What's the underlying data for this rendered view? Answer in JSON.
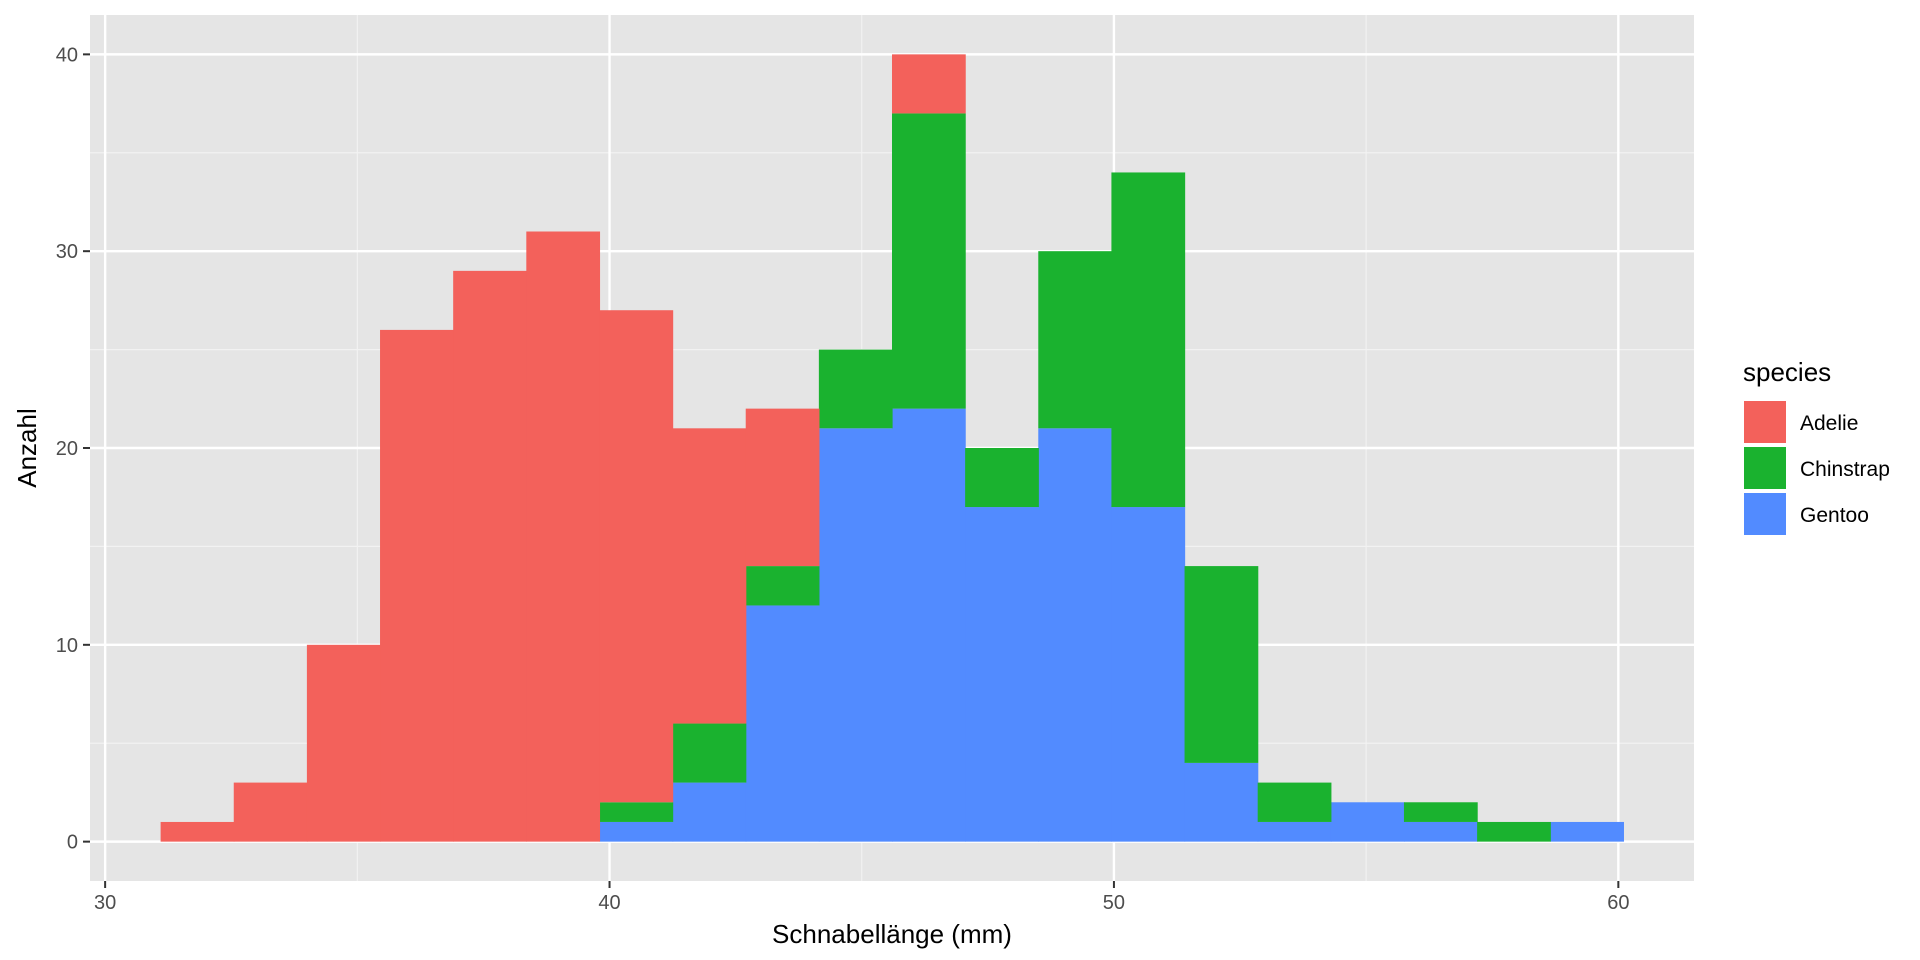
{
  "chart_data": {
    "type": "bar",
    "subtype": "stacked-histogram",
    "xlabel": "Schnabellänge (mm)",
    "ylabel": "Anzahl",
    "xlim": [
      29.7,
      61.5
    ],
    "ylim": [
      -2,
      42
    ],
    "xticks": [
      30,
      40,
      50,
      60
    ],
    "yticks": [
      0,
      10,
      20,
      30,
      40
    ],
    "grid": true,
    "legend": {
      "title": "species",
      "position": "right"
    },
    "bin_edges": [
      31.1,
      32.55,
      34.0,
      35.45,
      36.9,
      38.35,
      39.8,
      41.25,
      42.7,
      44.15,
      45.6,
      47.05,
      48.5,
      49.95,
      51.4,
      52.85,
      54.3,
      55.75,
      57.2,
      58.65,
      60.1
    ],
    "series": [
      {
        "name": "Gentoo",
        "color": "#528bff",
        "values": [
          0,
          0,
          0,
          0,
          0,
          0,
          1,
          3,
          12,
          21,
          22,
          17,
          21,
          17,
          4,
          1,
          2,
          1,
          0,
          1
        ]
      },
      {
        "name": "Chinstrap",
        "color": "#1ab22f",
        "values": [
          0,
          0,
          0,
          0,
          0,
          0,
          1,
          3,
          2,
          4,
          15,
          3,
          9,
          17,
          10,
          2,
          0,
          1,
          1,
          0
        ]
      },
      {
        "name": "Adelie",
        "color": "#f3615b",
        "values": [
          1,
          3,
          10,
          26,
          29,
          31,
          25,
          15,
          8,
          0,
          3,
          0,
          0,
          0,
          0,
          0,
          0,
          0,
          0,
          0
        ]
      }
    ],
    "legend_order": [
      "Adelie",
      "Chinstrap",
      "Gentoo"
    ]
  }
}
